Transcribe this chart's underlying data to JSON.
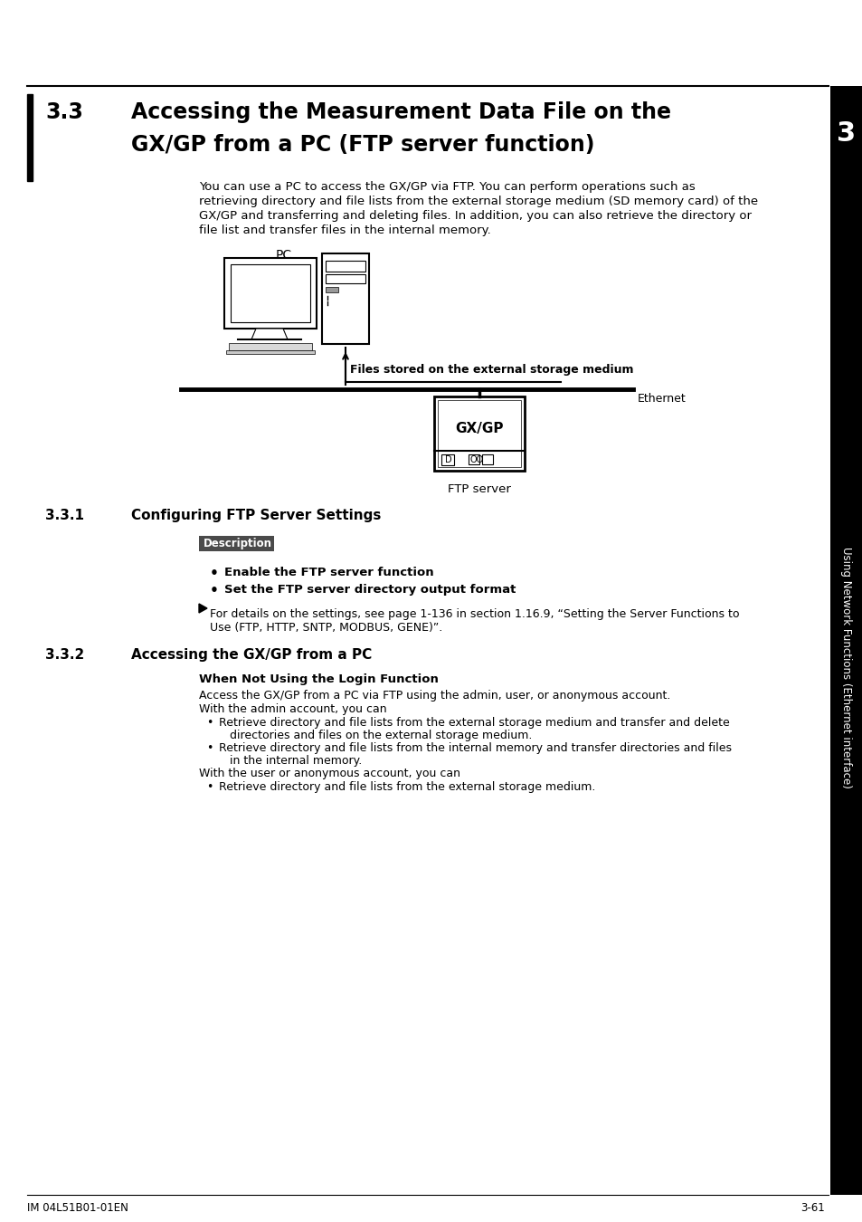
{
  "bg_color": "#ffffff",
  "title_section": "3.3",
  "title_line1": "Accessing the Measurement Data File on the",
  "title_line2": "GX/GP from a PC (FTP server function)",
  "intro_text_line1": "You can use a PC to access the GX/GP via FTP. You can perform operations such as",
  "intro_text_line2": "retrieving directory and file lists from the external storage medium (SD memory card) of the",
  "intro_text_line3": "GX/GP and transferring and deleting files. In addition, you can also retrieve the directory or",
  "intro_text_line4": "file list and transfer files in the internal memory.",
  "pc_label": "PC",
  "arrow_label": "Files stored on the external storage medium",
  "ethernet_label": "Ethernet",
  "gxgp_label": "GX/GP",
  "ftp_label": "FTP server",
  "section_331": "3.3.1",
  "section_331_title": "Configuring FTP Server Settings",
  "description_label": "Description",
  "bullet_331_1": "Enable the FTP server function",
  "bullet_331_2": "Set the FTP server directory output format",
  "note_331_line1": "For details on the settings, see page 1-136 in section 1.16.9, “Setting the Server Functions to",
  "note_331_line2": "Use (FTP, HTTP, SNTP, MODBUS, GENE)”.",
  "section_332": "3.3.2",
  "section_332_title": "Accessing the GX/GP from a PC",
  "subsection_title": "When Not Using the Login Function",
  "sub_line1": "Access the GX/GP from a PC via FTP using the admin, user, or anonymous account.",
  "sub_line2": "With the admin account, you can",
  "bullet_332_1a": "Retrieve directory and file lists from the external storage medium and transfer and delete",
  "bullet_332_1b": "directories and files on the external storage medium.",
  "bullet_332_2a": "Retrieve directory and file lists from the internal memory and transfer directories and files",
  "bullet_332_2b": "in the internal memory.",
  "sub_line3": "With the user or anonymous account, you can",
  "bullet_332_3": "Retrieve directory and file lists from the external storage medium.",
  "sidebar_text": "Using Network Functions (Ethernet interface)",
  "sidebar_number": "3",
  "footer_left": "IM 04L51B01-01EN",
  "footer_right": "3-61"
}
